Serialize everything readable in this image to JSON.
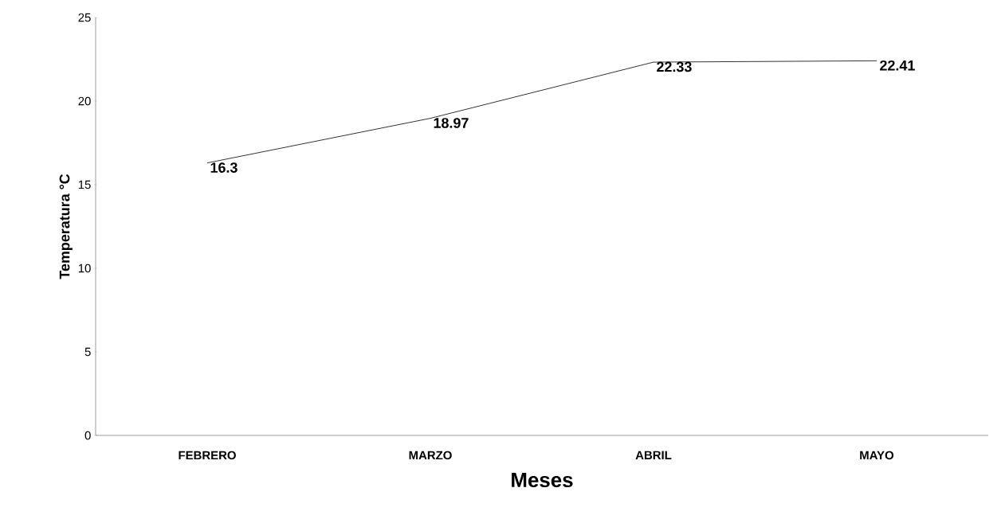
{
  "chart_data": {
    "type": "line",
    "xlabel": "Meses",
    "ylabel": "Temperatura °C",
    "categories": [
      "FEBRERO",
      "MARZO",
      "ABRIL",
      "MAYO"
    ],
    "series": [
      {
        "color": "#000000",
        "values": [
          16.3,
          18.97,
          22.33,
          22.41
        ]
      }
    ],
    "ylim": [
      0,
      25
    ],
    "yticks": [
      0,
      5,
      10,
      15,
      20,
      25
    ],
    "data_labels": true,
    "grid": false,
    "marker": "none",
    "line_style": "solid"
  }
}
